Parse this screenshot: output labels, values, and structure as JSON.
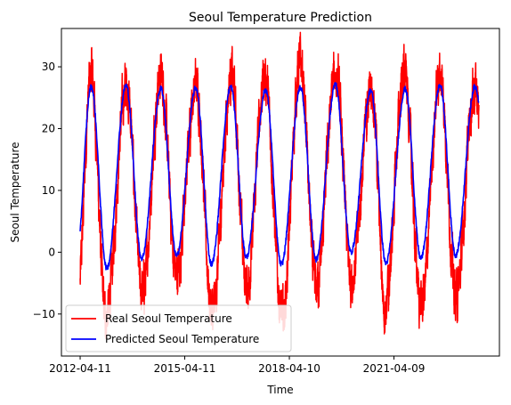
{
  "chart_data": {
    "type": "line",
    "title": "Seoul Temperature Prediction",
    "xlabel": "Time",
    "ylabel": "Seoul Temperature",
    "x_range": [
      "2011-09-28",
      "2024-04-17"
    ],
    "xticks": [
      "2012-04-11",
      "2015-04-11",
      "2018-04-10",
      "2021-04-09"
    ],
    "ylim": [
      -16.8,
      36.2
    ],
    "yticks": [
      -10,
      0,
      10,
      20,
      30
    ],
    "grid": false,
    "legend_position": "lower-left",
    "sample_start": "2012-04-11",
    "sample_end": "2023-09-15",
    "series": [
      {
        "name": "Real Seoul Temperature",
        "color": "#ff0000",
        "type": "daily-noisy",
        "seasonal_peaks": [
          {
            "date": "2012-08-05",
            "value": 31.4
          },
          {
            "date": "2013-08-10",
            "value": 29.3
          },
          {
            "date": "2014-08-03",
            "value": 31.3
          },
          {
            "date": "2015-08-07",
            "value": 29.6
          },
          {
            "date": "2016-08-12",
            "value": 31.4
          },
          {
            "date": "2017-07-25",
            "value": 31.0
          },
          {
            "date": "2018-08-01",
            "value": 33.7
          },
          {
            "date": "2019-08-08",
            "value": 31.5
          },
          {
            "date": "2020-08-20",
            "value": 29.1
          },
          {
            "date": "2021-07-24",
            "value": 31.7
          },
          {
            "date": "2022-08-05",
            "value": 31.4
          },
          {
            "date": "2023-08-02",
            "value": 29.1
          }
        ],
        "seasonal_troughs": [
          {
            "date": "2013-01-05",
            "value": -14.2
          },
          {
            "date": "2014-01-20",
            "value": -10.0
          },
          {
            "date": "2015-01-15",
            "value": -6.2
          },
          {
            "date": "2016-01-24",
            "value": -13.7
          },
          {
            "date": "2017-01-20",
            "value": -8.4
          },
          {
            "date": "2018-01-26",
            "value": -14.3
          },
          {
            "date": "2019-01-15",
            "value": -8.8
          },
          {
            "date": "2020-01-20",
            "value": -6.8
          },
          {
            "date": "2021-01-08",
            "value": -12.4
          },
          {
            "date": "2022-01-20",
            "value": -12.2
          },
          {
            "date": "2023-01-20",
            "value": -10.5
          }
        ]
      },
      {
        "name": "Predicted Seoul Temperature",
        "color": "#0000ff",
        "type": "smoothed",
        "seasonal_peaks": [
          {
            "date": "2012-08-05",
            "value": 26.8
          },
          {
            "date": "2013-08-05",
            "value": 27.0
          },
          {
            "date": "2014-08-05",
            "value": 26.5
          },
          {
            "date": "2015-08-05",
            "value": 26.6
          },
          {
            "date": "2016-08-05",
            "value": 26.8
          },
          {
            "date": "2017-08-05",
            "value": 26.3
          },
          {
            "date": "2018-08-05",
            "value": 26.7
          },
          {
            "date": "2019-08-05",
            "value": 27.2
          },
          {
            "date": "2020-08-10",
            "value": 26.2
          },
          {
            "date": "2021-08-05",
            "value": 26.4
          },
          {
            "date": "2022-08-05",
            "value": 27.0
          },
          {
            "date": "2023-08-05",
            "value": 26.8
          }
        ],
        "seasonal_troughs": [
          {
            "date": "2013-01-15",
            "value": -2.6
          },
          {
            "date": "2014-01-15",
            "value": -1.0
          },
          {
            "date": "2015-01-15",
            "value": -0.6
          },
          {
            "date": "2016-01-15",
            "value": -1.9
          },
          {
            "date": "2017-01-15",
            "value": -0.8
          },
          {
            "date": "2018-01-15",
            "value": -2.0
          },
          {
            "date": "2019-01-15",
            "value": -1.2
          },
          {
            "date": "2020-01-15",
            "value": 0.0
          },
          {
            "date": "2021-01-15",
            "value": -1.8
          },
          {
            "date": "2022-01-15",
            "value": -1.0
          },
          {
            "date": "2023-01-15",
            "value": -0.5
          }
        ]
      }
    ]
  }
}
